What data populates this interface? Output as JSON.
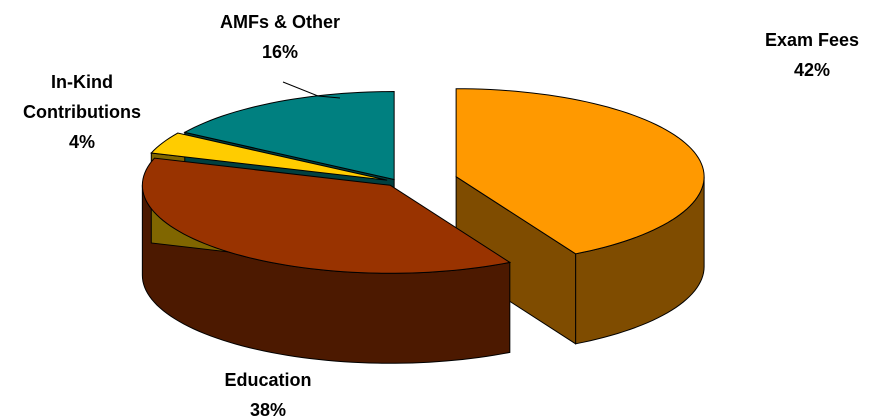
{
  "chart_data": {
    "type": "pie",
    "style": "3d-exploded",
    "slices": [
      {
        "label": "Exam Fees",
        "label_lines": [
          "Exam Fees"
        ],
        "percent_label": "42%",
        "value": 42,
        "color": "#FF9900",
        "side_color": "#7F4C00"
      },
      {
        "label": "Education",
        "label_lines": [
          "Education"
        ],
        "percent_label": "38%",
        "value": 38,
        "color": "#993300",
        "side_color": "#4C1900"
      },
      {
        "label": "In-Kind Contributions",
        "label_lines": [
          "In-Kind",
          "Contributions"
        ],
        "percent_label": "4%",
        "value": 4,
        "color": "#FFCC00",
        "side_color": "#806600"
      },
      {
        "label": "AMFs & Other",
        "label_lines": [
          "AMFs & Other"
        ],
        "percent_label": "16%",
        "value": 16,
        "color": "#008080",
        "side_color": "#004040"
      }
    ],
    "edge_color": "#000000"
  }
}
